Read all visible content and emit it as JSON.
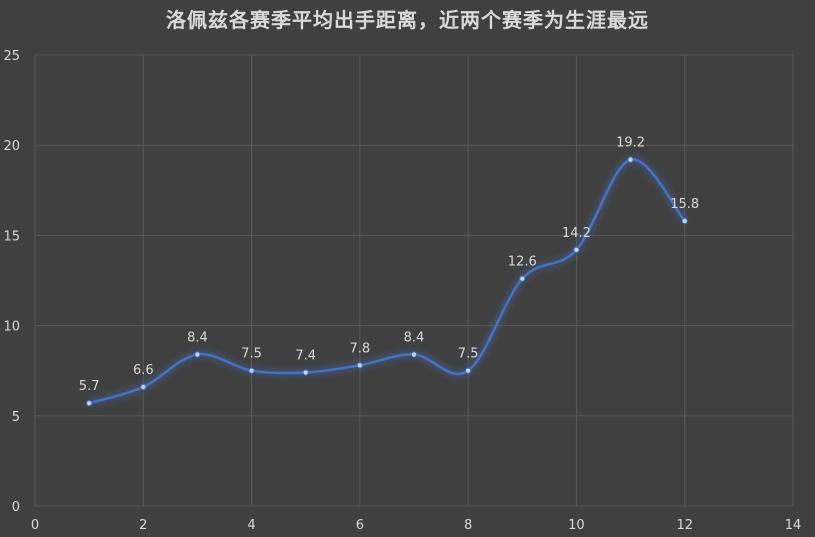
{
  "chart_data": {
    "type": "line",
    "title": "洛佩兹各赛季平均出手距离，近两个赛季为生涯最远",
    "x": [
      1,
      2,
      3,
      4,
      5,
      6,
      7,
      8,
      9,
      10,
      11,
      12
    ],
    "series": [
      {
        "values": [
          5.7,
          6.6,
          8.4,
          7.5,
          7.4,
          7.8,
          8.4,
          7.5,
          12.6,
          14.2,
          19.2,
          15.8
        ],
        "labels": [
          "5.7",
          "6.6",
          "8.4",
          "7.5",
          "7.4",
          "7.8",
          "8.4",
          "7.5",
          "12.6",
          "14.2",
          "19.2",
          "15.8"
        ],
        "color": "#4472c4"
      }
    ],
    "xlim": [
      0,
      14
    ],
    "ylim": [
      0,
      25
    ],
    "x_ticks": [
      "0",
      "2",
      "4",
      "6",
      "8",
      "10",
      "12",
      "14"
    ],
    "y_ticks": [
      "0",
      "5",
      "10",
      "15",
      "20",
      "25"
    ],
    "smooth": true,
    "grid": true,
    "legend": "none",
    "background": "#404040",
    "grid_color": "#595959",
    "text_color": "#d9d9d9"
  }
}
